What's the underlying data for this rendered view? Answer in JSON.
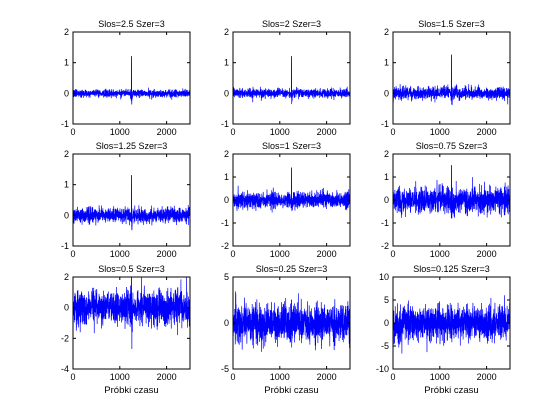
{
  "figure": {
    "background": "#ffffff",
    "axes_color": "#000000",
    "line_color": "#0000ff"
  },
  "chart_data": [
    {
      "type": "line",
      "title": "Slos=2.5 Szer=3",
      "xlabel": "",
      "ylabel": "",
      "xlim": [
        0,
        2500
      ],
      "ylim": [
        -1,
        2
      ],
      "xticks": [
        0,
        1000,
        2000
      ],
      "xtick_labels": [
        "0",
        "1000",
        "2000"
      ],
      "yticks": [
        -1,
        0,
        1,
        2
      ],
      "ytick_labels": [
        "-1",
        "0",
        "1",
        "2"
      ],
      "noise_std": 0.06,
      "spike": {
        "x": 1250,
        "value": 1.2,
        "dip": -0.35
      },
      "grid": false,
      "legend": "none",
      "series": [
        {
          "color": "#0000ff",
          "samples": 2500
        }
      ]
    },
    {
      "type": "line",
      "title": "Slos=2 Szer=3",
      "xlabel": "",
      "ylabel": "",
      "xlim": [
        0,
        2500
      ],
      "ylim": [
        -1,
        2
      ],
      "xticks": [
        0,
        1000,
        2000
      ],
      "xtick_labels": [
        "0",
        "1000",
        "2000"
      ],
      "yticks": [
        -1,
        0,
        1,
        2
      ],
      "ytick_labels": [
        "-1",
        "0",
        "1",
        "2"
      ],
      "noise_std": 0.075,
      "spike": {
        "x": 1250,
        "value": 1.2,
        "dip": -0.35
      },
      "grid": false,
      "legend": "none",
      "series": [
        {
          "color": "#0000ff",
          "samples": 2500
        }
      ]
    },
    {
      "type": "line",
      "title": "Slos=1.5 Szer=3",
      "xlabel": "",
      "ylabel": "",
      "xlim": [
        0,
        2500
      ],
      "ylim": [
        -1,
        2
      ],
      "xticks": [
        0,
        1000,
        2000
      ],
      "xtick_labels": [
        "0",
        "1000",
        "2000"
      ],
      "yticks": [
        -1,
        0,
        1,
        2
      ],
      "ytick_labels": [
        "-1",
        "0",
        "1",
        "2"
      ],
      "noise_std": 0.1,
      "spike": {
        "x": 1250,
        "value": 1.25,
        "dip": -0.4
      },
      "grid": false,
      "legend": "none",
      "series": [
        {
          "color": "#0000ff",
          "samples": 2500
        }
      ]
    },
    {
      "type": "line",
      "title": "Slos=1.25 Szer=3",
      "xlabel": "",
      "ylabel": "",
      "xlim": [
        0,
        2500
      ],
      "ylim": [
        -1,
        2
      ],
      "xticks": [
        0,
        1000,
        2000
      ],
      "xtick_labels": [
        "0",
        "1000",
        "2000"
      ],
      "yticks": [
        -1,
        0,
        1,
        2
      ],
      "ytick_labels": [
        "-1",
        "0",
        "1",
        "2"
      ],
      "noise_std": 0.12,
      "spike": {
        "x": 1250,
        "value": 1.3,
        "dip": -0.45
      },
      "grid": false,
      "legend": "none",
      "series": [
        {
          "color": "#0000ff",
          "samples": 2500
        }
      ]
    },
    {
      "type": "line",
      "title": "Slos=1 Szer=3",
      "xlabel": "",
      "ylabel": "",
      "xlim": [
        0,
        2500
      ],
      "ylim": [
        -2,
        2
      ],
      "xticks": [
        0,
        1000,
        2000
      ],
      "xtick_labels": [
        "0",
        "1000",
        "2000"
      ],
      "yticks": [
        -2,
        -1,
        0,
        1,
        2
      ],
      "ytick_labels": [
        "-2",
        "-1",
        "0",
        "1",
        "2"
      ],
      "noise_std": 0.17,
      "spike": {
        "x": 1250,
        "value": 1.4,
        "dip": -0.5
      },
      "grid": false,
      "legend": "none",
      "series": [
        {
          "color": "#0000ff",
          "samples": 2500
        }
      ]
    },
    {
      "type": "line",
      "title": "Slos=0.75 Szer=3",
      "xlabel": "",
      "ylabel": "",
      "xlim": [
        0,
        2500
      ],
      "ylim": [
        -2,
        2
      ],
      "xticks": [
        0,
        1000,
        2000
      ],
      "xtick_labels": [
        "0",
        "1000",
        "2000"
      ],
      "yticks": [
        -2,
        -1,
        0,
        1,
        2
      ],
      "ytick_labels": [
        "-2",
        "-1",
        "0",
        "1",
        "2"
      ],
      "noise_std": 0.28,
      "spike": {
        "x": 1250,
        "value": 1.5,
        "dip": -0.6
      },
      "grid": false,
      "legend": "none",
      "series": [
        {
          "color": "#0000ff",
          "samples": 2500
        }
      ]
    },
    {
      "type": "line",
      "title": "Slos=0.5 Szer=3",
      "xlabel": "Próbki czasu",
      "ylabel": "",
      "xlim": [
        0,
        2500
      ],
      "ylim": [
        -4,
        2
      ],
      "xticks": [
        0,
        1000,
        2000
      ],
      "xtick_labels": [
        "0",
        "1000",
        "2000"
      ],
      "yticks": [
        -4,
        -2,
        0,
        2
      ],
      "ytick_labels": [
        "-4",
        "-2",
        "0",
        "2"
      ],
      "noise_std": 0.55,
      "spike": {
        "x": 1250,
        "value": 2.0,
        "dip": -1.0
      },
      "grid": false,
      "legend": "none",
      "series": [
        {
          "color": "#0000ff",
          "samples": 2500
        }
      ]
    },
    {
      "type": "line",
      "title": "Slos=0.25 Szer=3",
      "xlabel": "Próbki czasu",
      "ylabel": "",
      "xlim": [
        0,
        2500
      ],
      "ylim": [
        -5,
        5
      ],
      "xticks": [
        0,
        1000,
        2000
      ],
      "xtick_labels": [
        "0",
        "1000",
        "2000"
      ],
      "yticks": [
        -5,
        0,
        5
      ],
      "ytick_labels": [
        "-5",
        "0",
        "5"
      ],
      "noise_std": 1.0,
      "spike": {
        "x": 1250,
        "value": 2.5,
        "dip": -1.5
      },
      "grid": false,
      "legend": "none",
      "series": [
        {
          "color": "#0000ff",
          "samples": 2500
        }
      ]
    },
    {
      "type": "line",
      "title": "Slos=0.125 Szer=3",
      "xlabel": "Próbki czasu",
      "ylabel": "",
      "xlim": [
        0,
        2500
      ],
      "ylim": [
        -10,
        10
      ],
      "xticks": [
        0,
        1000,
        2000
      ],
      "xtick_labels": [
        "0",
        "1000",
        "2000"
      ],
      "yticks": [
        -10,
        -5,
        0,
        5,
        10
      ],
      "ytick_labels": [
        "-10",
        "-5",
        "0",
        "5",
        "10"
      ],
      "noise_std": 1.9,
      "spike": {
        "x": 1250,
        "value": 3.0,
        "dip": -2.0
      },
      "grid": false,
      "legend": "none",
      "series": [
        {
          "color": "#0000ff",
          "samples": 2500
        }
      ]
    }
  ]
}
